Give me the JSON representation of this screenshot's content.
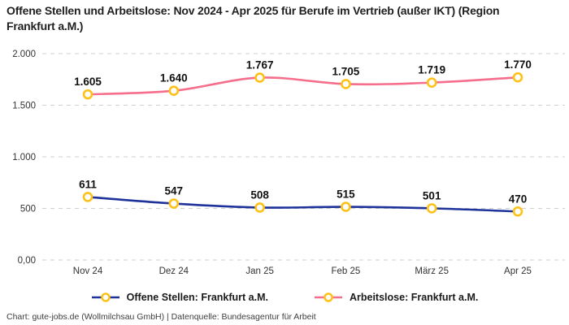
{
  "title": "Offene Stellen und Arbeitslose: Nov 2024 - Apr 2025 für Berufe im Vertrieb (außer IKT) (Region Frankfurt a.M.)",
  "footer": "Chart: gute-jobs.de (Wollmilchsau GmbH) | Datenquelle: Bundesagentur für Arbeit",
  "colors": {
    "background": "#ffffff",
    "gridline": "#cfcfcf",
    "axis_text": "#333333",
    "data_label": "#111111",
    "title_text": "#1f1f1f",
    "marker_fill": "#ffffff",
    "marker_stroke": "#fdc117",
    "series_open_positions": "#1e3399",
    "series_unemployed": "#f56e8b"
  },
  "chart_data": {
    "type": "line",
    "title": "Offene Stellen und Arbeitslose: Nov 2024 - Apr 2025 für Berufe im Vertrieb (außer IKT) (Region Frankfurt a.M.)",
    "categories": [
      "Nov 24",
      "Dez 24",
      "Jan 25",
      "Feb 25",
      "März 25",
      "Apr 25"
    ],
    "series": [
      {
        "name": "Offene Stellen: Frankfurt a.M.",
        "values": [
          611,
          547,
          508,
          515,
          501,
          470
        ],
        "labels": [
          "611",
          "547",
          "508",
          "515",
          "501",
          "470"
        ],
        "color": "#1e3399"
      },
      {
        "name": "Arbeitslose: Frankfurt a.M.",
        "values": [
          1605,
          1640,
          1767,
          1705,
          1719,
          1770
        ],
        "labels": [
          "1.605",
          "1.640",
          "1.767",
          "1.705",
          "1.719",
          "1.770"
        ],
        "color": "#f56e8b"
      }
    ],
    "marker": {
      "fill": "#ffffff",
      "stroke": "#fdc117"
    },
    "xlabel": "",
    "ylabel": "",
    "ylim": [
      0,
      2000
    ],
    "yticks": {
      "values": [
        0,
        500,
        1000,
        1500,
        2000
      ],
      "labels": [
        "0,00",
        "500",
        "1.000",
        "1.500",
        "2.000"
      ]
    },
    "grid": "dashed-horizontal",
    "legend_position": "bottom"
  }
}
